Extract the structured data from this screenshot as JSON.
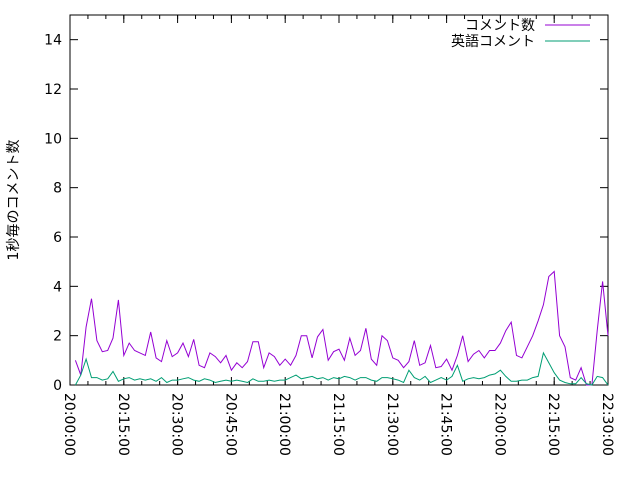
{
  "chart_data": {
    "type": "line",
    "title": "",
    "xlabel": "",
    "ylabel": "1秒毎のコメント数",
    "ylim": [
      0,
      15
    ],
    "yticks": [
      "0",
      "2",
      "4",
      "6",
      "8",
      "10",
      "12",
      "14"
    ],
    "xlim": [
      "20:00:00",
      "22:30:00"
    ],
    "xticks": [
      "20:00:00",
      "20:15:00",
      "20:30:00",
      "20:45:00",
      "21:00:00",
      "21:15:00",
      "21:30:00",
      "21:45:00",
      "22:00:00",
      "22:15:00",
      "22:30:00"
    ],
    "grid": false,
    "legend_position": "top-right",
    "x": [
      "20:01:30",
      "20:03:00",
      "20:04:30",
      "20:06:00",
      "20:07:30",
      "20:09:00",
      "20:10:30",
      "20:12:00",
      "20:13:30",
      "20:15:00",
      "20:16:30",
      "20:18:00",
      "20:19:30",
      "20:21:00",
      "20:22:30",
      "20:24:00",
      "20:25:30",
      "20:27:00",
      "20:28:30",
      "20:30:00",
      "20:31:30",
      "20:33:00",
      "20:34:30",
      "20:36:00",
      "20:37:30",
      "20:39:00",
      "20:40:30",
      "20:42:00",
      "20:43:30",
      "20:45:00",
      "20:46:30",
      "20:48:00",
      "20:49:30",
      "20:51:00",
      "20:52:30",
      "20:54:00",
      "20:55:30",
      "20:57:00",
      "20:58:30",
      "21:00:00",
      "21:01:30",
      "21:03:00",
      "21:04:30",
      "21:06:00",
      "21:07:30",
      "21:09:00",
      "21:10:30",
      "21:12:00",
      "21:13:30",
      "21:15:00",
      "21:16:30",
      "21:18:00",
      "21:19:30",
      "21:21:00",
      "21:22:30",
      "21:24:00",
      "21:25:30",
      "21:27:00",
      "21:28:30",
      "21:30:00",
      "21:31:30",
      "21:33:00",
      "21:34:30",
      "21:36:00",
      "21:37:30",
      "21:39:00",
      "21:40:30",
      "21:42:00",
      "21:43:30",
      "21:45:00",
      "21:46:30",
      "21:48:00",
      "21:49:30",
      "21:51:00",
      "21:52:30",
      "21:54:00",
      "21:55:30",
      "21:57:00",
      "21:58:30",
      "22:00:00",
      "22:01:30",
      "22:03:00",
      "22:04:30",
      "22:06:00",
      "22:07:30",
      "22:09:00",
      "22:10:30",
      "22:12:00",
      "22:13:30",
      "22:15:00",
      "22:16:30",
      "22:18:00",
      "22:19:30",
      "22:21:00",
      "22:22:30",
      "22:24:00",
      "22:25:30",
      "22:27:00",
      "22:28:30",
      "22:30:00"
    ],
    "series": [
      {
        "name": "コメント数",
        "color": "#9400d3",
        "values": [
          1.0,
          0.4,
          2.35,
          3.5,
          1.8,
          1.35,
          1.4,
          1.9,
          3.45,
          1.2,
          1.7,
          1.4,
          1.3,
          1.2,
          2.15,
          1.1,
          0.95,
          1.8,
          1.15,
          1.3,
          1.7,
          1.15,
          1.85,
          0.8,
          0.7,
          1.3,
          1.15,
          0.9,
          1.2,
          0.6,
          0.9,
          0.7,
          0.95,
          1.75,
          1.75,
          0.7,
          1.3,
          1.15,
          0.8,
          1.05,
          0.8,
          1.2,
          2.0,
          2.0,
          1.1,
          1.95,
          2.25,
          1.0,
          1.35,
          1.45,
          1.0,
          1.9,
          1.2,
          1.4,
          2.3,
          1.05,
          0.8,
          2.0,
          1.8,
          1.1,
          1.0,
          0.7,
          0.95,
          1.8,
          0.8,
          0.9,
          1.6,
          0.7,
          0.75,
          1.05,
          0.6,
          1.2,
          2.0,
          0.95,
          1.25,
          1.4,
          1.1,
          1.4,
          1.4,
          1.7,
          2.2,
          2.55,
          1.2,
          1.1,
          1.55,
          2.0,
          2.6,
          3.25,
          4.4,
          4.6,
          2.0,
          1.55,
          0.3,
          0.2,
          0.7,
          0,
          0,
          2.2,
          4.2,
          2.0
        ]
      },
      {
        "name": "英語コメント",
        "color": "#009e73",
        "values": [
          0,
          0.4,
          1.05,
          0.3,
          0.3,
          0.2,
          0.25,
          0.55,
          0.15,
          0.25,
          0.3,
          0.2,
          0.25,
          0.2,
          0.25,
          0.15,
          0.3,
          0.1,
          0.2,
          0.2,
          0.25,
          0.3,
          0.2,
          0.15,
          0.25,
          0.2,
          0.1,
          0.15,
          0.2,
          0.15,
          0.2,
          0.15,
          0.1,
          0.25,
          0.15,
          0.15,
          0.2,
          0.15,
          0.2,
          0.2,
          0.3,
          0.4,
          0.25,
          0.3,
          0.35,
          0.25,
          0.3,
          0.2,
          0.3,
          0.25,
          0.35,
          0.3,
          0.2,
          0.3,
          0.3,
          0.2,
          0.15,
          0.3,
          0.3,
          0.25,
          0.2,
          0.1,
          0.6,
          0.3,
          0.2,
          0.35,
          0.1,
          0.2,
          0.3,
          0.2,
          0.35,
          0.8,
          0.15,
          0.25,
          0.3,
          0.25,
          0.3,
          0.4,
          0.45,
          0.6,
          0.35,
          0.15,
          0.15,
          0.2,
          0.2,
          0.3,
          0.35,
          1.3,
          0.9,
          0.5,
          0.2,
          0.1,
          0.05,
          0.05,
          0.3,
          0.05,
          0,
          0.35,
          0.3,
          0
        ]
      }
    ]
  }
}
